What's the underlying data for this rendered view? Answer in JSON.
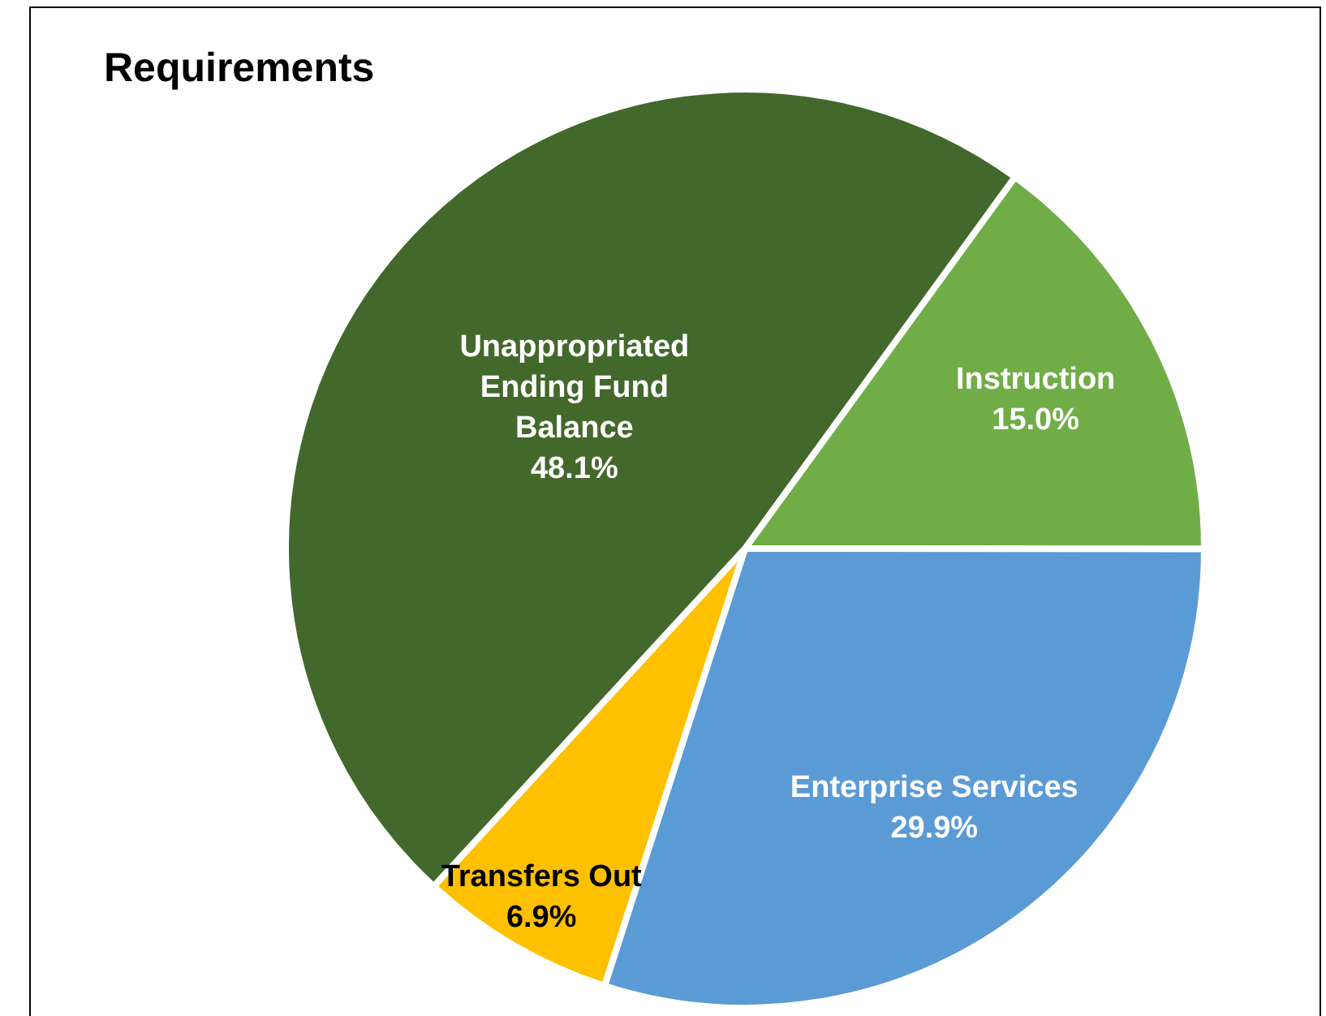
{
  "chart_data": {
    "type": "pie",
    "title": "Requirements",
    "categories": [
      "Unappropriated Ending Fund Balance",
      "Instruction",
      "Enterprise Services",
      "Transfers Out"
    ],
    "values": [
      48.1,
      15.0,
      29.9,
      6.9
    ],
    "colors": [
      "#43682b",
      "#70ad47",
      "#5b9bd5",
      "#ffc000"
    ],
    "value_labels": [
      "48.1%",
      "15.0%",
      "29.9%",
      "6.9%"
    ],
    "legend": false
  }
}
